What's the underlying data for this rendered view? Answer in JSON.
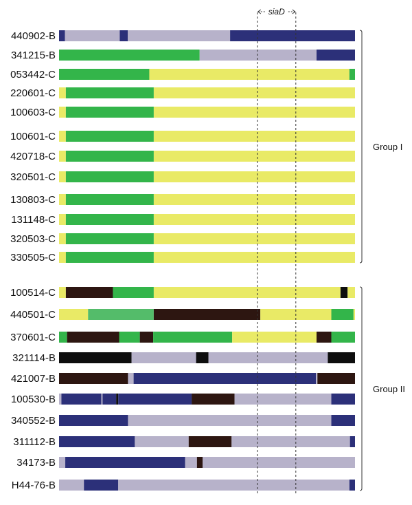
{
  "colors": {
    "B": "#2c3079",
    "G": "#33b54a",
    "L": "#54bc6a",
    "Y": "#e9ea66",
    "V": "#b7b2ca",
    "K": "#0e0e0e",
    "D": "#2d1611"
  },
  "gene": {
    "label": "siaD",
    "start": 0.67,
    "end": 0.8
  },
  "groups": [
    {
      "label": "Group I",
      "first_row": 0,
      "last_row": 11
    },
    {
      "label": "Group II",
      "first_row": 12,
      "last_row": 21
    }
  ],
  "strains": [
    {
      "label": "440902-B",
      "segments": [
        [
          "B",
          0.0,
          0.02
        ],
        [
          "V",
          0.02,
          0.205
        ],
        [
          "B",
          0.205,
          0.232
        ],
        [
          "V",
          0.232,
          0.578
        ],
        [
          "B",
          0.578,
          1.0
        ]
      ]
    },
    {
      "label": "341215-B",
      "segments": [
        [
          "G",
          0.0,
          0.475
        ],
        [
          "V",
          0.475,
          0.87
        ],
        [
          "B",
          0.87,
          1.0
        ]
      ]
    },
    {
      "label": "053442-C",
      "segments": [
        [
          "G",
          0.0,
          0.305
        ],
        [
          "Y",
          0.305,
          0.981
        ],
        [
          "G",
          0.981,
          1.0
        ]
      ]
    },
    {
      "label": "220601-C",
      "segments": [
        [
          "Y",
          0.0,
          0.023
        ],
        [
          "G",
          0.023,
          0.32
        ],
        [
          "Y",
          0.32,
          1.0
        ]
      ]
    },
    {
      "label": "100603-C",
      "segments": [
        [
          "Y",
          0.0,
          0.023
        ],
        [
          "G",
          0.023,
          0.32
        ],
        [
          "Y",
          0.32,
          1.0
        ]
      ]
    },
    {
      "label": "100601-C",
      "segments": [
        [
          "Y",
          0.0,
          0.023
        ],
        [
          "G",
          0.023,
          0.32
        ],
        [
          "Y",
          0.32,
          1.0
        ]
      ]
    },
    {
      "label": "420718-C",
      "segments": [
        [
          "Y",
          0.0,
          0.023
        ],
        [
          "G",
          0.023,
          0.32
        ],
        [
          "Y",
          0.32,
          1.0
        ]
      ]
    },
    {
      "label": "320501-C",
      "segments": [
        [
          "Y",
          0.0,
          0.023
        ],
        [
          "G",
          0.023,
          0.32
        ],
        [
          "Y",
          0.32,
          1.0
        ]
      ]
    },
    {
      "label": "130803-C",
      "segments": [
        [
          "Y",
          0.0,
          0.023
        ],
        [
          "G",
          0.023,
          0.32
        ],
        [
          "Y",
          0.32,
          1.0
        ]
      ]
    },
    {
      "label": "131148-C",
      "segments": [
        [
          "Y",
          0.0,
          0.023
        ],
        [
          "G",
          0.023,
          0.32
        ],
        [
          "Y",
          0.32,
          1.0
        ]
      ]
    },
    {
      "label": "320503-C",
      "segments": [
        [
          "Y",
          0.0,
          0.023
        ],
        [
          "G",
          0.023,
          0.32
        ],
        [
          "Y",
          0.32,
          1.0
        ]
      ]
    },
    {
      "label": "330505-C",
      "segments": [
        [
          "Y",
          0.0,
          0.023
        ],
        [
          "G",
          0.023,
          0.32
        ],
        [
          "Y",
          0.32,
          1.0
        ]
      ]
    },
    {
      "label": "100514-C",
      "segments": [
        [
          "Y",
          0.0,
          0.023
        ],
        [
          "D",
          0.023,
          0.182
        ],
        [
          "G",
          0.182,
          0.32
        ],
        [
          "Y",
          0.32,
          0.951
        ],
        [
          "K",
          0.951,
          0.975
        ],
        [
          "Y",
          0.975,
          1.0
        ]
      ]
    },
    {
      "label": "440501-C",
      "segments": [
        [
          "Y",
          0.0,
          0.098
        ],
        [
          "L",
          0.098,
          0.32
        ],
        [
          "D",
          0.32,
          0.68
        ],
        [
          "Y",
          0.68,
          0.92
        ],
        [
          "G",
          0.92,
          0.995
        ],
        [
          "Y",
          0.995,
          1.0
        ]
      ]
    },
    {
      "label": "370601-C",
      "segments": [
        [
          "G",
          0.0,
          0.027
        ],
        [
          "D",
          0.027,
          0.203
        ],
        [
          "G",
          0.203,
          0.273
        ],
        [
          "D",
          0.273,
          0.318
        ],
        [
          "G",
          0.318,
          0.585
        ],
        [
          "Y",
          0.585,
          0.87
        ],
        [
          "D",
          0.87,
          0.92
        ],
        [
          "G",
          0.92,
          1.0
        ]
      ]
    },
    {
      "label": "321114-B",
      "segments": [
        [
          "K",
          0.0,
          0.245
        ],
        [
          "V",
          0.245,
          0.463
        ],
        [
          "K",
          0.463,
          0.505
        ],
        [
          "V",
          0.505,
          0.908
        ],
        [
          "K",
          0.908,
          1.0
        ]
      ]
    },
    {
      "label": "421007-B",
      "segments": [
        [
          "D",
          0.0,
          0.233
        ],
        [
          "V",
          0.233,
          0.252
        ],
        [
          "B",
          0.252,
          0.868
        ],
        [
          "V",
          0.868,
          0.873
        ],
        [
          "D",
          0.873,
          1.0
        ]
      ]
    },
    {
      "label": "100530-B",
      "segments": [
        [
          "V",
          0.0,
          0.008
        ],
        [
          "B",
          0.008,
          0.143
        ],
        [
          "V",
          0.143,
          0.147
        ],
        [
          "B",
          0.147,
          0.193
        ],
        [
          "K",
          0.193,
          0.2
        ],
        [
          "B",
          0.2,
          0.448
        ],
        [
          "D",
          0.448,
          0.593
        ],
        [
          "V",
          0.593,
          0.92
        ],
        [
          "B",
          0.92,
          1.0
        ]
      ]
    },
    {
      "label": "340552-B",
      "segments": [
        [
          "B",
          0.0,
          0.233
        ],
        [
          "V",
          0.233,
          0.92
        ],
        [
          "B",
          0.92,
          1.0
        ]
      ]
    },
    {
      "label": "311112-B",
      "segments": [
        [
          "B",
          0.0,
          0.256
        ],
        [
          "V",
          0.256,
          0.438
        ],
        [
          "D",
          0.438,
          0.583
        ],
        [
          "V",
          0.583,
          0.983
        ],
        [
          "B",
          0.983,
          1.0
        ]
      ]
    },
    {
      "label": "34173-B",
      "segments": [
        [
          "V",
          0.0,
          0.021
        ],
        [
          "B",
          0.021,
          0.426
        ],
        [
          "V",
          0.426,
          0.466
        ],
        [
          "D",
          0.466,
          0.485
        ],
        [
          "V",
          0.485,
          1.0
        ]
      ]
    },
    {
      "label": "H44-76-B",
      "segments": [
        [
          "V",
          0.0,
          0.084
        ],
        [
          "B",
          0.084,
          0.2
        ],
        [
          "V",
          0.2,
          0.981
        ],
        [
          "B",
          0.981,
          1.0
        ]
      ]
    }
  ]
}
